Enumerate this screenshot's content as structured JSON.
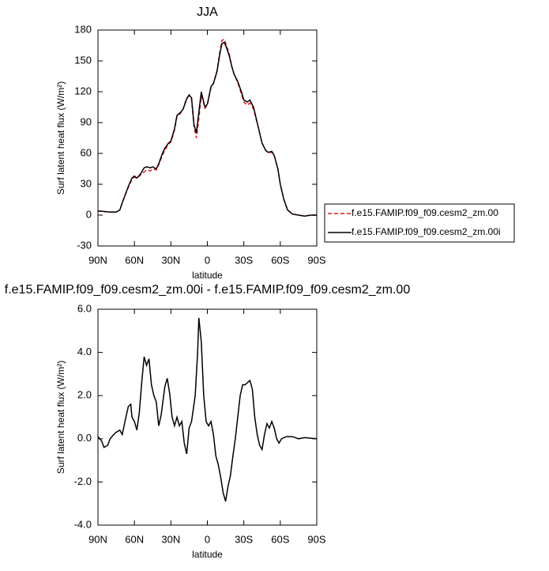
{
  "chart_data": [
    {
      "type": "line",
      "title": "JJA",
      "x_label": "latitude",
      "y_label": "Surf latent heat flux (W/m²)",
      "x": [
        90,
        80,
        75,
        72,
        70,
        65,
        62,
        60,
        58,
        55,
        52,
        50,
        47,
        45,
        42,
        40,
        37,
        35,
        32,
        30,
        27,
        25,
        22,
        20,
        17,
        15,
        13,
        11,
        9,
        7,
        5,
        3,
        2,
        0,
        -3,
        -5,
        -8,
        -10,
        -12,
        -14,
        -16,
        -18,
        -20,
        -22,
        -25,
        -28,
        -30,
        -33,
        -35,
        -38,
        -40,
        -43,
        -45,
        -48,
        -50,
        -53,
        -55,
        -58,
        -60,
        -63,
        -66,
        -70,
        -75,
        -80,
        -85,
        -90
      ],
      "series": [
        {
          "name": "f.e15.FAMIP.f09_f09.cesm2_zm.00",
          "color": "#e8191c",
          "line_style": "dashed",
          "values": [
            4,
            3,
            3,
            5,
            12,
            27,
            35,
            37,
            36,
            39,
            42,
            44,
            43,
            45,
            44,
            49,
            58,
            63,
            69,
            71,
            83,
            96,
            99,
            103,
            114,
            116,
            113,
            86,
            75,
            94,
            116,
            109,
            104,
            107,
            124,
            128,
            141,
            157,
            170,
            171,
            164,
            157,
            145,
            137,
            129,
            118,
            110,
            107,
            109,
            103,
            94,
            80,
            70,
            63,
            61,
            61,
            58,
            45,
            30,
            15,
            5,
            1,
            0,
            -1,
            0,
            0
          ]
        },
        {
          "name": "f.e15.FAMIP.f09_f09.cesm2_zm.00i",
          "color": "#000000",
          "line_style": "solid",
          "values": [
            4,
            3,
            3,
            5,
            12,
            28,
            36,
            38,
            36,
            40,
            46,
            47,
            46,
            47,
            45,
            50,
            60,
            65,
            70,
            72,
            84,
            97,
            100,
            103,
            113,
            117,
            114,
            88,
            80,
            100,
            120,
            110,
            105,
            108,
            125,
            128,
            140,
            155,
            167,
            168,
            162,
            155,
            145,
            137,
            130,
            120,
            112,
            110,
            112,
            105,
            95,
            80,
            70,
            63,
            61,
            62,
            58,
            45,
            30,
            15,
            5,
            1,
            0,
            -1,
            0,
            0
          ]
        }
      ],
      "xlim": [
        90,
        -90
      ],
      "xticks": [
        {
          "value": 90,
          "label": "90N"
        },
        {
          "value": 60,
          "label": "60N"
        },
        {
          "value": 30,
          "label": "30N"
        },
        0,
        {
          "value": -30,
          "label": "30S"
        },
        {
          "value": -60,
          "label": "60S"
        },
        {
          "value": -90,
          "label": "90S"
        }
      ],
      "ylim": [
        -30,
        180
      ],
      "yticks": [
        -30,
        0,
        30,
        60,
        90,
        120,
        150,
        180
      ],
      "legend": "right"
    },
    {
      "type": "line",
      "title": "f.e15.FAMIP.f09_f09.cesm2_zm.00i - f.e15.FAMIP.f09_f09.cesm2_zm.00",
      "x_label": "latitude",
      "y_label": "Surf latent heat flux (W/m²)",
      "x": [
        90,
        87,
        85,
        82,
        80,
        77,
        75,
        72,
        70,
        67,
        65,
        63,
        62,
        60,
        58,
        56,
        54,
        52,
        50,
        48,
        46,
        44,
        42,
        40,
        38,
        35,
        33,
        31,
        29,
        27,
        25,
        23,
        21,
        19,
        17,
        15,
        13,
        10,
        8,
        7,
        5,
        3,
        1,
        -1,
        -3,
        -5,
        -7,
        -9,
        -11,
        -13,
        -15,
        -17,
        -19,
        -21,
        -23,
        -25,
        -27,
        -29,
        -31,
        -33,
        -35,
        -37,
        -39,
        -41,
        -43,
        -45,
        -47,
        -49,
        -51,
        -53,
        -55,
        -57,
        -59,
        -61,
        -65,
        -70,
        -75,
        -80,
        -90
      ],
      "series": [
        {
          "color": "#000000",
          "line_style": "solid",
          "values": [
            0.1,
            -0.1,
            -0.4,
            -0.3,
            0,
            0.2,
            0.3,
            0.4,
            0.2,
            1.0,
            1.5,
            1.6,
            1.0,
            0.8,
            0.4,
            1.2,
            2.6,
            3.8,
            3.4,
            3.7,
            2.5,
            2.0,
            1.7,
            0.6,
            1.1,
            2.4,
            2.8,
            2.1,
            1.0,
            0.6,
            1.0,
            0.6,
            0.8,
            -0.2,
            -0.7,
            0.5,
            0.8,
            2.0,
            4.0,
            5.6,
            4.5,
            2.0,
            0.8,
            0.6,
            0.8,
            0.2,
            -0.8,
            -1.2,
            -1.8,
            -2.5,
            -2.9,
            -2.2,
            -1.7,
            -0.8,
            0.0,
            1.0,
            2.0,
            2.5,
            2.5,
            2.6,
            2.7,
            2.3,
            1.0,
            0.2,
            -0.3,
            -0.5,
            0.2,
            0.7,
            0.5,
            0.8,
            0.5,
            0.0,
            -0.2,
            0.0,
            0.1,
            0.1,
            0.0,
            0.05,
            0.0
          ]
        }
      ],
      "xlim": [
        90,
        -90
      ],
      "xticks": [
        {
          "value": 90,
          "label": "90N"
        },
        {
          "value": 60,
          "label": "60N"
        },
        {
          "value": 30,
          "label": "30N"
        },
        0,
        {
          "value": -30,
          "label": "30S"
        },
        {
          "value": -60,
          "label": "60S"
        },
        {
          "value": -90,
          "label": "90S"
        }
      ],
      "ylim": [
        -4,
        6
      ],
      "yticks": [
        {
          "value": -4,
          "label": "-4.0"
        },
        {
          "value": -2,
          "label": "-2.0"
        },
        {
          "value": 0,
          "label": "0.0"
        },
        {
          "value": 2,
          "label": "2.0"
        },
        {
          "value": 4,
          "label": "4.0"
        },
        {
          "value": 6,
          "label": "6.0"
        }
      ]
    }
  ]
}
